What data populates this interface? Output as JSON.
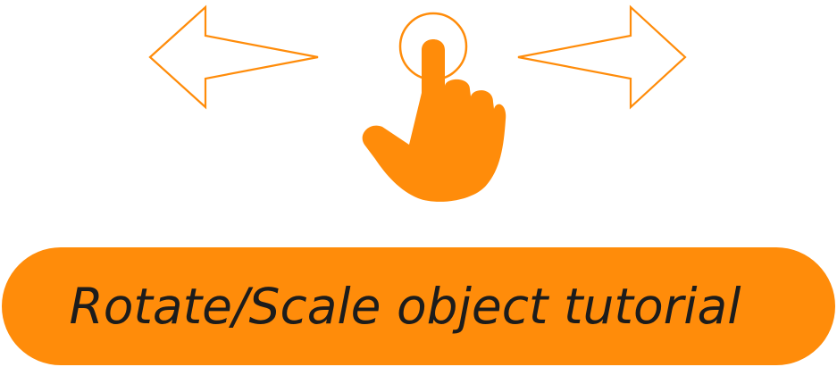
{
  "colors": {
    "accent": "#FF8C0A",
    "label_text": "#1C1C1C",
    "background": "#FFFFFF"
  },
  "illustration": {
    "left_icon": "arrow-left-outline-icon",
    "center_icon": "tap-hand-icon",
    "right_icon": "arrow-right-outline-icon"
  },
  "button": {
    "label": "Rotate/Scale object tutorial"
  }
}
